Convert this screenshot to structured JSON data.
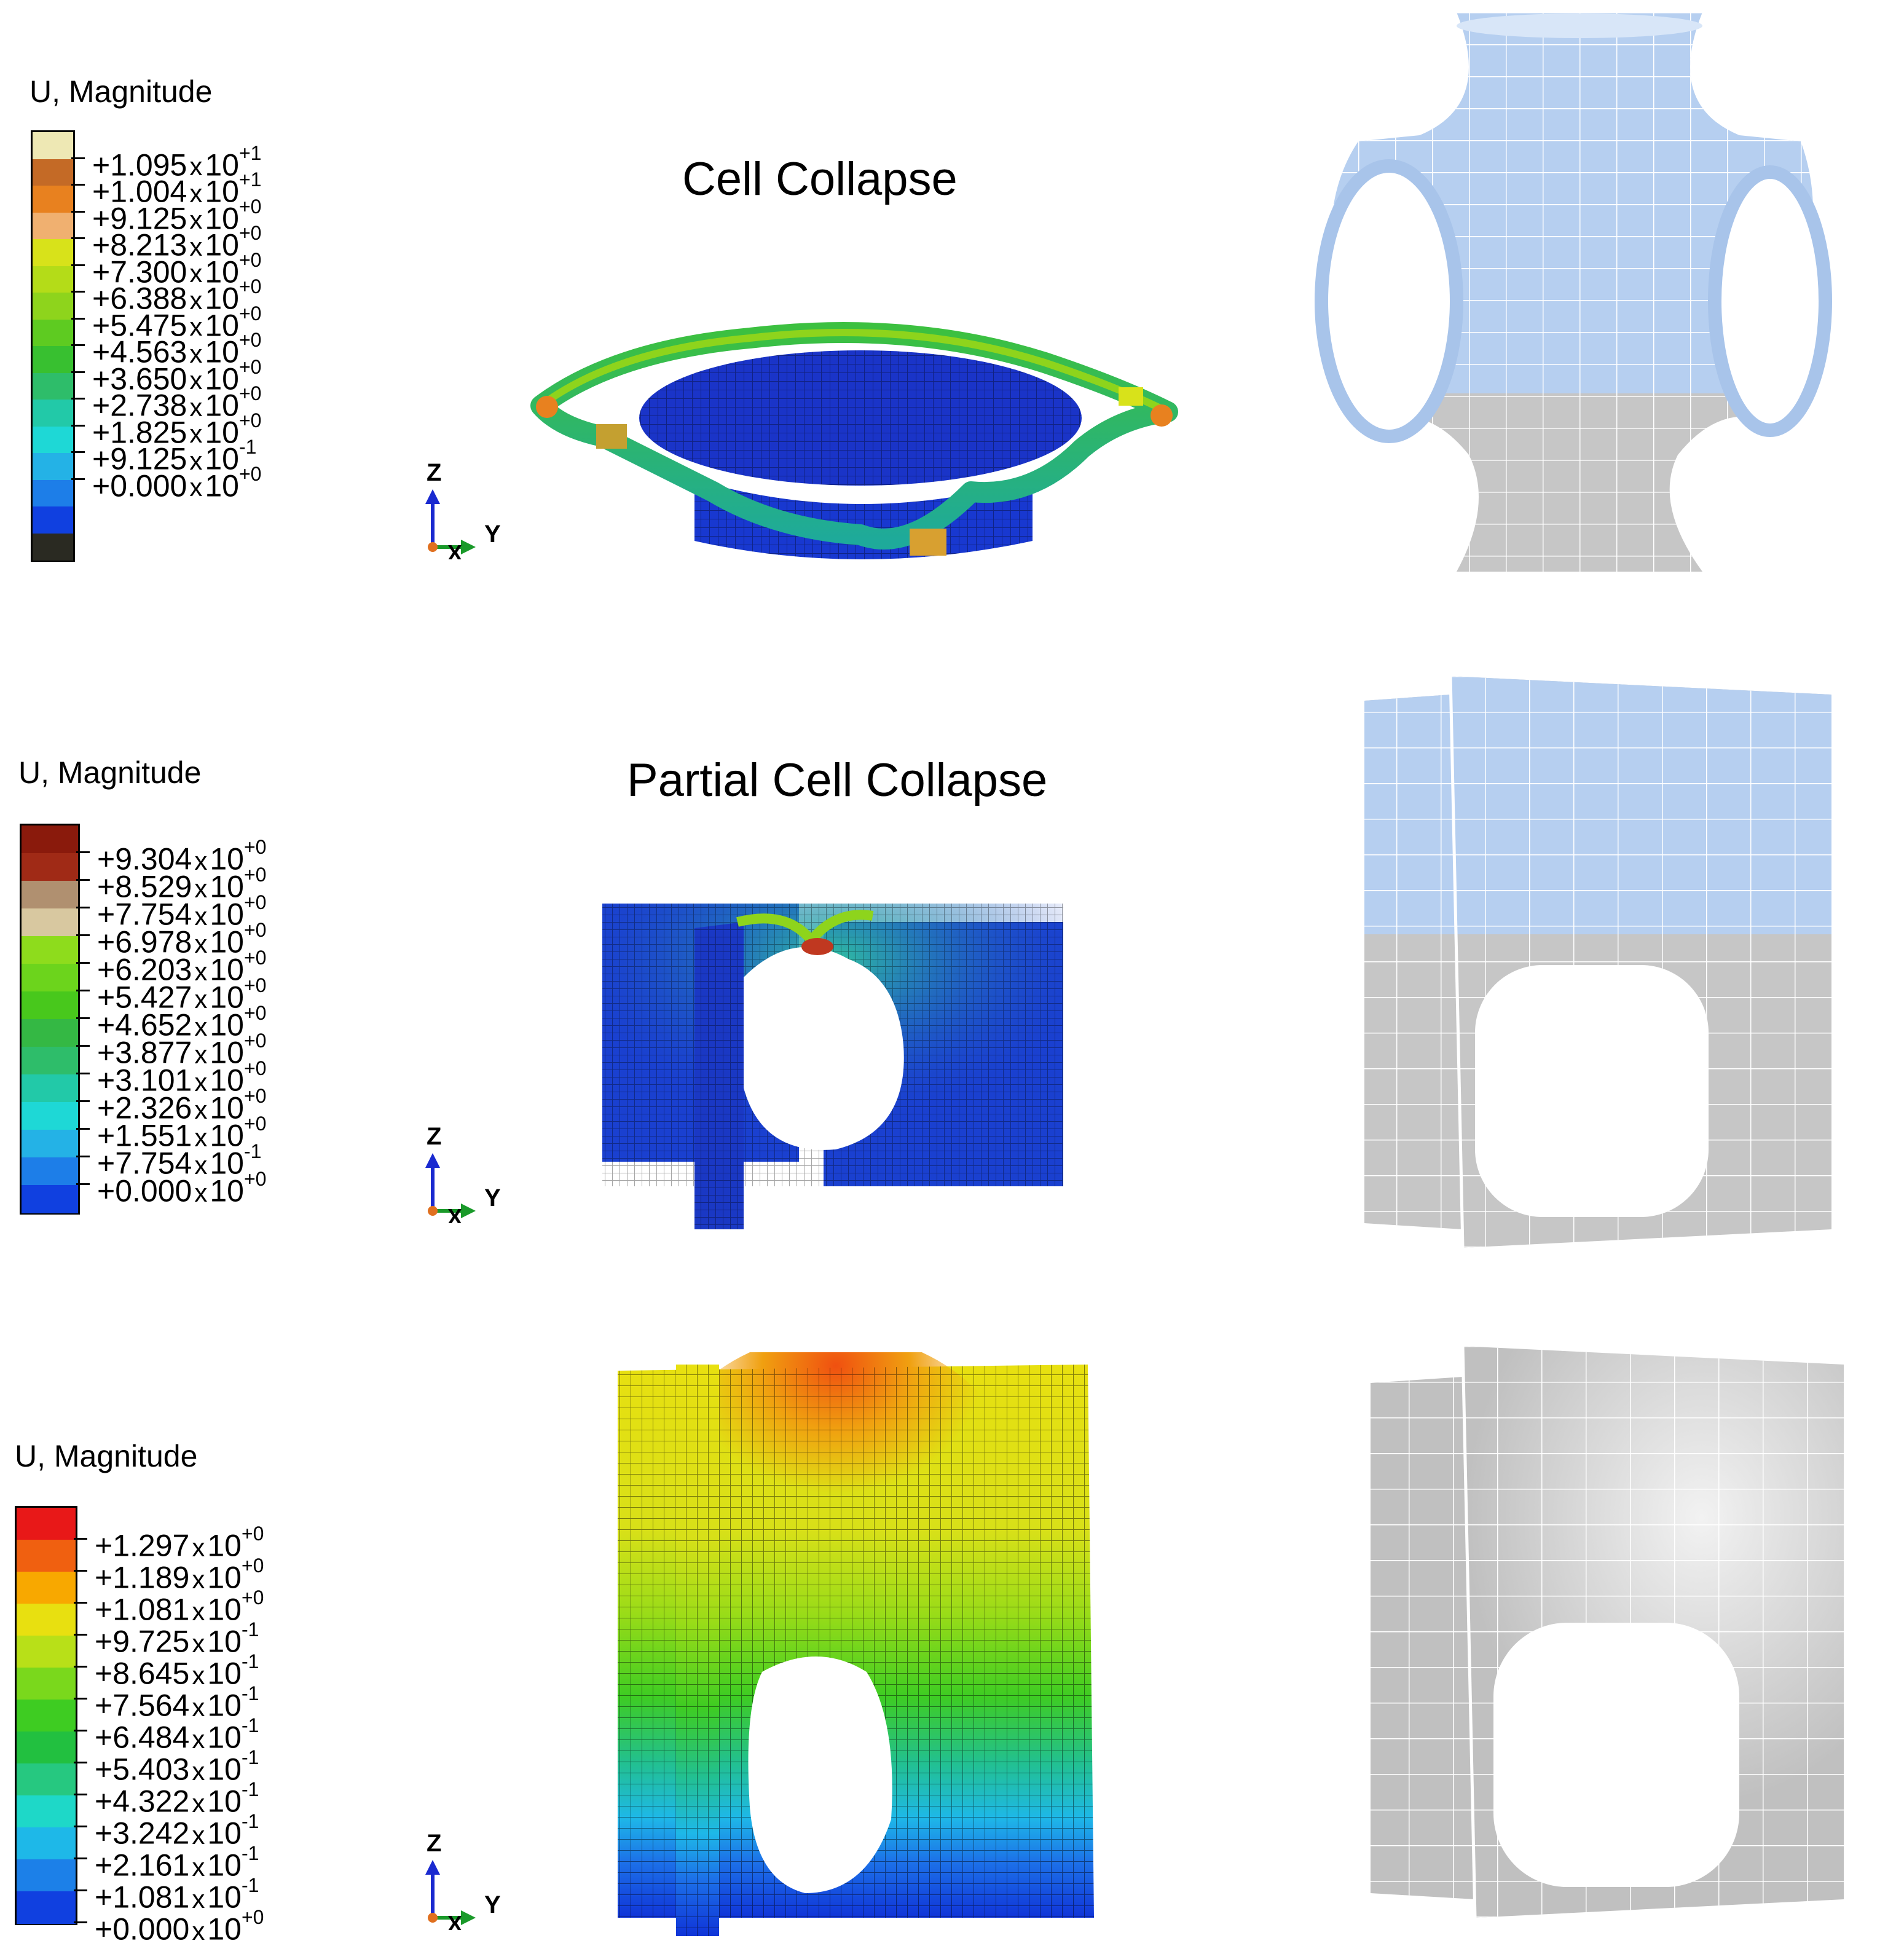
{
  "rows": [
    {
      "id": "row1",
      "title": "Cell Collapse",
      "legend": {
        "title": "U, Magnitude",
        "colors": [
          "#eee8b4",
          "#c46a26",
          "#e8811f",
          "#f0b070",
          "#d8e21a",
          "#b4dc18",
          "#8ed41c",
          "#5ecb21",
          "#38c030",
          "#2ebd6a",
          "#22c9a8",
          "#1ed8d6",
          "#24b2e6",
          "#1d7ee8",
          "#1040e0",
          "#2a2a22"
        ],
        "labels": [
          {
            "m": "+1.095",
            "e": "+1"
          },
          {
            "m": "+1.004",
            "e": "+1"
          },
          {
            "m": "+9.125",
            "e": "+0"
          },
          {
            "m": "+8.213",
            "e": "+0"
          },
          {
            "m": "+7.300",
            "e": "+0"
          },
          {
            "m": "+6.388",
            "e": "+0"
          },
          {
            "m": "+5.475",
            "e": "+0"
          },
          {
            "m": "+4.563",
            "e": "+0"
          },
          {
            "m": "+3.650",
            "e": "+0"
          },
          {
            "m": "+2.738",
            "e": "+0"
          },
          {
            "m": "+1.825",
            "e": "+0"
          },
          {
            "m": "+9.125",
            "e": "-1"
          },
          {
            "m": "+0.000",
            "e": "+0"
          }
        ]
      },
      "axes": {
        "z": "Z",
        "y": "Y",
        "x": "X"
      }
    },
    {
      "id": "row2",
      "title": "Partial Cell Collapse",
      "legend": {
        "title": "U, Magnitude",
        "colors": [
          "#8a1a0c",
          "#a02a16",
          "#b09070",
          "#d8c8a0",
          "#8edc1c",
          "#6cd41c",
          "#48c81c",
          "#34b844",
          "#2ebd6a",
          "#22c9a8",
          "#1ed8d6",
          "#24b2e6",
          "#1d7ee8",
          "#1040e0"
        ],
        "labels": [
          {
            "m": "+9.304",
            "e": "+0"
          },
          {
            "m": "+8.529",
            "e": "+0"
          },
          {
            "m": "+7.754",
            "e": "+0"
          },
          {
            "m": "+6.978",
            "e": "+0"
          },
          {
            "m": "+6.203",
            "e": "+0"
          },
          {
            "m": "+5.427",
            "e": "+0"
          },
          {
            "m": "+4.652",
            "e": "+0"
          },
          {
            "m": "+3.877",
            "e": "+0"
          },
          {
            "m": "+3.101",
            "e": "+0"
          },
          {
            "m": "+2.326",
            "e": "+0"
          },
          {
            "m": "+1.551",
            "e": "+0"
          },
          {
            "m": "+7.754",
            "e": "-1"
          },
          {
            "m": "+0.000",
            "e": "+0"
          }
        ]
      },
      "axes": {
        "z": "Z",
        "y": "Y",
        "x": "X"
      }
    },
    {
      "id": "row3",
      "title": "",
      "legend": {
        "title": "U, Magnitude",
        "colors": [
          "#e81818",
          "#f06010",
          "#f8a800",
          "#e8e010",
          "#b8e018",
          "#7ad81c",
          "#3ecc22",
          "#22c040",
          "#26c880",
          "#1ed8c8",
          "#1eb8e8",
          "#1c80e8",
          "#1040e0"
        ],
        "labels": [
          {
            "m": "+1.297",
            "e": "+0"
          },
          {
            "m": "+1.189",
            "e": "+0"
          },
          {
            "m": "+1.081",
            "e": "+0"
          },
          {
            "m": "+9.725",
            "e": "-1"
          },
          {
            "m": "+8.645",
            "e": "-1"
          },
          {
            "m": "+7.564",
            "e": "-1"
          },
          {
            "m": "+6.484",
            "e": "-1"
          },
          {
            "m": "+5.403",
            "e": "-1"
          },
          {
            "m": "+4.322",
            "e": "-1"
          },
          {
            "m": "+3.242",
            "e": "-1"
          },
          {
            "m": "+2.161",
            "e": "-1"
          },
          {
            "m": "+1.081",
            "e": "-1"
          },
          {
            "m": "+0.000",
            "e": "+0"
          }
        ]
      },
      "axes": {
        "z": "Z",
        "y": "Y",
        "x": "X"
      }
    }
  ],
  "multiply_sign": "x",
  "colors": {
    "fe_blue": "#1e3ad8",
    "shell_blue": "#b8d2f2",
    "shell_gray": "#c4c4c4",
    "mesh_line": "#ffffff"
  }
}
